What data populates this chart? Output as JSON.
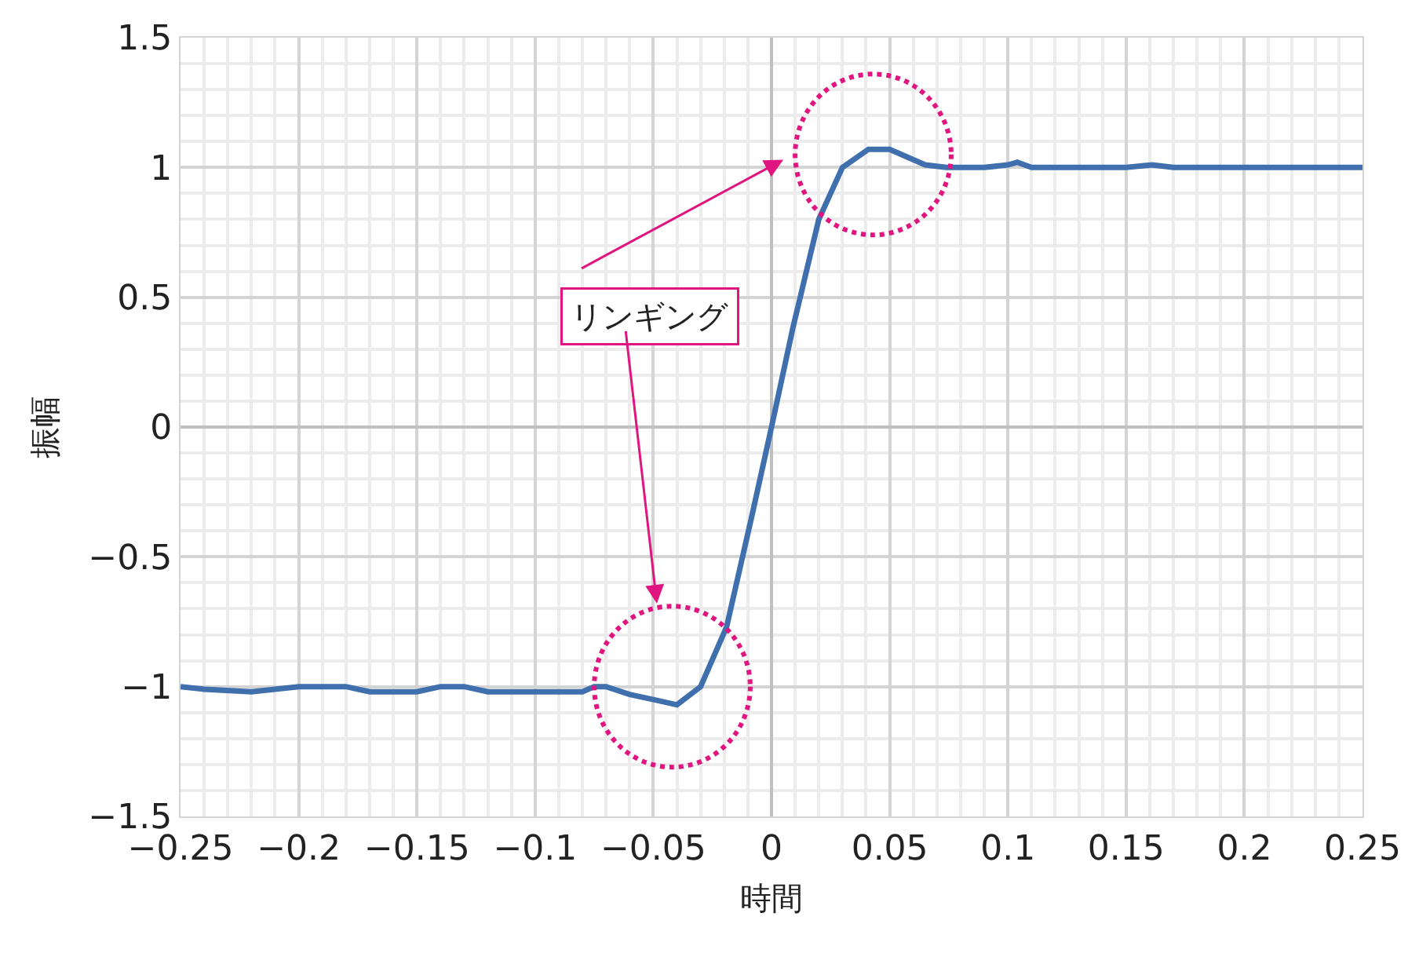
{
  "chart_data": {
    "type": "line",
    "xlabel": "時間",
    "ylabel": "振幅",
    "x": [
      -0.25,
      -0.24,
      -0.22,
      -0.2,
      -0.18,
      -0.17,
      -0.15,
      -0.14,
      -0.13,
      -0.12,
      -0.08,
      -0.075,
      -0.07,
      -0.06,
      -0.05,
      -0.04,
      -0.03,
      -0.019,
      -0.008,
      0.0,
      0.009,
      0.02,
      0.03,
      0.041,
      0.05,
      0.065,
      0.074,
      0.09,
      0.1,
      0.104,
      0.11,
      0.15,
      0.161,
      0.17,
      0.25
    ],
    "series": [
      {
        "color": "#3f6fad",
        "values": [
          -1.0,
          -1.01,
          -1.02,
          -1.0,
          -1.0,
          -1.02,
          -1.02,
          -1.0,
          -1.0,
          -1.02,
          -1.02,
          -1.0,
          -1.0,
          -1.03,
          -1.05,
          -1.07,
          -1.0,
          -0.77,
          -0.33,
          0.0,
          0.38,
          0.8,
          1.0,
          1.07,
          1.07,
          1.01,
          1.0,
          1.0,
          1.01,
          1.02,
          1.0,
          1.0,
          1.01,
          1.0,
          1.0
        ]
      }
    ],
    "xlim": [
      -0.25,
      0.25
    ],
    "ylim": [
      -1.5,
      1.5
    ],
    "xticks": [
      -0.25,
      -0.2,
      -0.15,
      -0.1,
      -0.05,
      0,
      0.05,
      0.1,
      0.15,
      0.2,
      0.25
    ],
    "yticks": [
      -1.5,
      -1,
      -0.5,
      0,
      0.5,
      1,
      1.5
    ],
    "grid": true,
    "marker": "none",
    "line_style": "solid",
    "annotations": [
      "リンギング"
    ]
  }
}
